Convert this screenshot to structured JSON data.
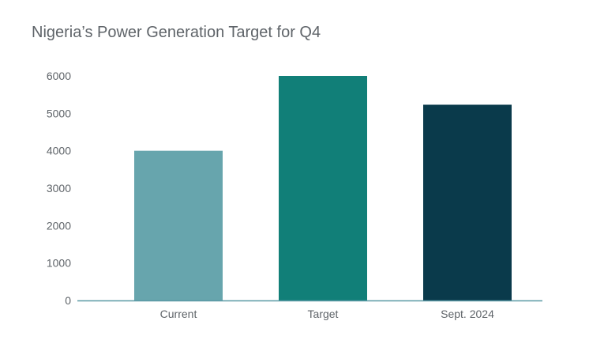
{
  "chart_data": {
    "type": "bar",
    "title": "Nigeria’s Power Generation Target for Q4",
    "categories": [
      "Current",
      "Target",
      "Sept. 2024"
    ],
    "values": [
      4000,
      6000,
      5230
    ],
    "bar_colors": [
      "#67a5ad",
      "#117f78",
      "#0a3a4b"
    ],
    "yticks": [
      0,
      1000,
      2000,
      3000,
      4000,
      5000,
      6000
    ],
    "ylim": [
      0,
      6000
    ],
    "xlabel": "",
    "ylabel": "",
    "grid": false,
    "axis_color": "#5b9aa6"
  }
}
